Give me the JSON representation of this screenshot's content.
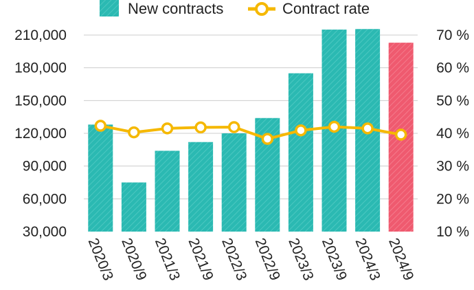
{
  "chart_data": {
    "type": "bar",
    "categories": [
      "2020/3",
      "2020/9",
      "2021/3",
      "2021/9",
      "2022/3",
      "2022/9",
      "2023/3",
      "2023/9",
      "2024/3",
      "2024/9"
    ],
    "series": [
      {
        "name": "New contracts",
        "type": "bar",
        "axis": "left",
        "values": [
          128000,
          75000,
          104000,
          112000,
          120000,
          134000,
          175000,
          215000,
          215500,
          203000
        ],
        "color": "#2bb9b2",
        "highlight_color": "#ef5a6f",
        "highlight_index": 9
      },
      {
        "name": "Contract rate",
        "type": "line",
        "axis": "right",
        "values": [
          42.3,
          40.3,
          41.5,
          41.8,
          41.9,
          38.3,
          40.9,
          42.0,
          41.5,
          39.6
        ],
        "color": "#f5b800"
      }
    ],
    "y_left": {
      "range": [
        30000,
        210000
      ],
      "ticks": [
        30000,
        60000,
        90000,
        120000,
        150000,
        180000,
        210000
      ],
      "tick_labels": [
        "30,000",
        "60,000",
        "90,000",
        "120,000",
        "150,000",
        "180,000",
        "210,000"
      ]
    },
    "y_right": {
      "range": [
        10,
        70
      ],
      "ticks": [
        10,
        20,
        30,
        40,
        50,
        60,
        70
      ],
      "tick_labels": [
        "10 %",
        "20 %",
        "30 %",
        "40 %",
        "50 %",
        "60 %",
        "70 %"
      ]
    },
    "grid": true,
    "legend": "top-center"
  }
}
